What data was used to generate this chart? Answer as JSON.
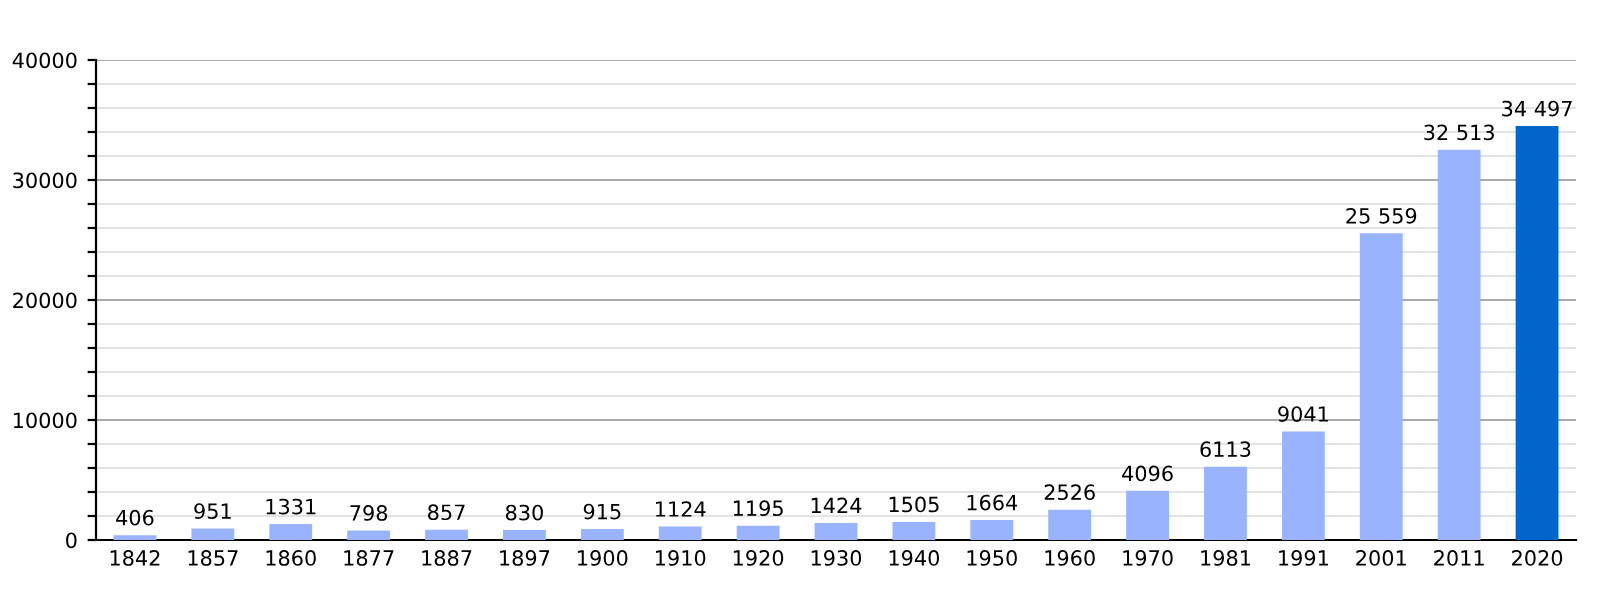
{
  "chart_data": {
    "type": "bar",
    "categories": [
      "1842",
      "1857",
      "1860",
      "1877",
      "1887",
      "1897",
      "1900",
      "1910",
      "1920",
      "1930",
      "1940",
      "1950",
      "1960",
      "1970",
      "1981",
      "1991",
      "2001",
      "2011",
      "2020"
    ],
    "values": [
      406,
      951,
      1331,
      798,
      857,
      830,
      915,
      1124,
      1195,
      1424,
      1505,
      1664,
      2526,
      4096,
      6113,
      9041,
      25559,
      32513,
      34497
    ],
    "value_labels": [
      "406",
      "951",
      "1331",
      "798",
      "857",
      "830",
      "915",
      "1124",
      "1195",
      "1424",
      "1505",
      "1664",
      "2526",
      "4096",
      "6113",
      "9041",
      "25 559",
      "32 513",
      "34 497"
    ],
    "colors": [
      "#99b3ff",
      "#99b3ff",
      "#99b3ff",
      "#99b3ff",
      "#99b3ff",
      "#99b3ff",
      "#99b3ff",
      "#99b3ff",
      "#99b3ff",
      "#99b3ff",
      "#99b3ff",
      "#99b3ff",
      "#99b3ff",
      "#99b3ff",
      "#99b3ff",
      "#99b3ff",
      "#99b3ff",
      "#99b3ff",
      "#0066cc"
    ],
    "ylim": [
      0,
      40000
    ],
    "yticks": [
      0,
      {
        "value": 2000,
        "label": null
      },
      {
        "value": 4000,
        "label": null
      },
      {
        "value": 6000,
        "label": null
      },
      {
        "value": 8000,
        "label": null
      },
      10000,
      {
        "value": 12000,
        "label": null
      },
      {
        "value": 14000,
        "label": null
      },
      {
        "value": 16000,
        "label": null
      },
      {
        "value": 18000,
        "label": null
      },
      20000,
      {
        "value": 22000,
        "label": null
      },
      {
        "value": 24000,
        "label": null
      },
      {
        "value": 26000,
        "label": null
      },
      {
        "value": 28000,
        "label": null
      },
      30000,
      {
        "value": 32000,
        "label": null
      },
      {
        "value": 34000,
        "label": null
      },
      {
        "value": 36000,
        "label": null
      },
      {
        "value": 38000,
        "label": null
      },
      40000
    ],
    "grid": "y"
  }
}
